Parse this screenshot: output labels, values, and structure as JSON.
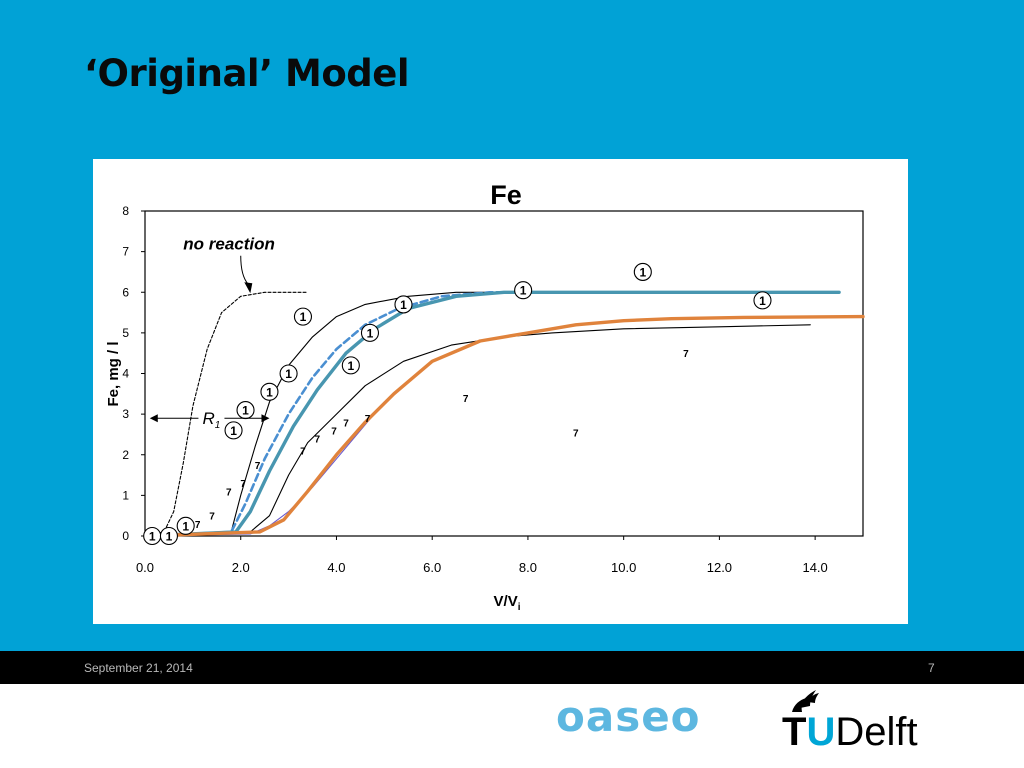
{
  "slide": {
    "title": "‘Original’ Model",
    "footer_date": "September 21, 2014",
    "page_number": "7",
    "logos": {
      "oaseo": "oaseo",
      "tudelft_t": "T",
      "tudelft_u": "U",
      "tudelft_rest": "Delft"
    }
  },
  "chart_data": {
    "type": "line",
    "title": "Fe",
    "xlabel": "V/V",
    "xlabel_subscript": "i",
    "ylabel": "Fe, mg / l",
    "xlim": [
      0,
      15
    ],
    "ylim": [
      0,
      8
    ],
    "x_ticks": [
      "0.0",
      "2.0",
      "4.0",
      "6.0",
      "8.0",
      "10.0",
      "12.0",
      "14.0"
    ],
    "x_tick_values": [
      0,
      2,
      4,
      6,
      8,
      10,
      12,
      14
    ],
    "y_ticks": [
      "0",
      "1",
      "2",
      "3",
      "4",
      "5",
      "6",
      "7",
      "8"
    ],
    "y_tick_values": [
      0,
      1,
      2,
      3,
      4,
      5,
      6,
      7,
      8
    ],
    "grid": false,
    "annotations": {
      "no_reaction": {
        "text": "no reaction",
        "x": 0.8,
        "y": 7.2,
        "arrow_to": [
          2.2,
          6.0
        ]
      },
      "r1": {
        "text": "R",
        "subscript": "1",
        "x": 1.2,
        "y": 2.9,
        "arrow_left_to": 0.1,
        "arrow_right_to": 2.6
      }
    },
    "series": [
      {
        "style": "dashed-thin",
        "color": "#000000",
        "x": [
          0,
          0.4,
          0.6,
          0.8,
          1.0,
          1.3,
          1.6,
          2.0,
          2.5,
          3.4
        ],
        "y": [
          0,
          0.1,
          0.6,
          1.8,
          3.2,
          4.6,
          5.5,
          5.9,
          6.0,
          6.0
        ]
      },
      {
        "style": "solid-thin",
        "color": "#000000",
        "x": [
          0,
          1.8,
          2.0,
          2.3,
          2.6,
          3.0,
          3.5,
          4.0,
          4.6,
          5.5,
          6.5,
          7.5
        ],
        "y": [
          0,
          0.1,
          1.0,
          2.2,
          3.3,
          4.2,
          4.9,
          5.4,
          5.7,
          5.9,
          6.0,
          6.0
        ]
      },
      {
        "style": "dashed-thick",
        "color": "#4a8fd1",
        "x": [
          0,
          1.8,
          2.1,
          2.5,
          3.0,
          3.5,
          4.0,
          4.6,
          5.3,
          6.2,
          7.2,
          8.0
        ],
        "y": [
          0,
          0.1,
          0.8,
          1.9,
          3.0,
          3.9,
          4.6,
          5.2,
          5.6,
          5.9,
          6.0,
          6.0
        ]
      },
      {
        "style": "solid-thick",
        "color": "#4896b0",
        "x": [
          0,
          1.9,
          2.2,
          2.6,
          3.1,
          3.6,
          4.2,
          4.8,
          5.5,
          6.5,
          7.5,
          9,
          11,
          14.5
        ],
        "y": [
          0,
          0.1,
          0.6,
          1.6,
          2.7,
          3.6,
          4.5,
          5.1,
          5.6,
          5.9,
          6.0,
          6.0,
          6.0,
          6.0
        ]
      },
      {
        "style": "solid-thin",
        "color": "#000000",
        "x": [
          0,
          2.2,
          2.6,
          3.0,
          3.4,
          4.0,
          4.6,
          5.4,
          6.4,
          7.5,
          8.5,
          10,
          12,
          13.9
        ],
        "y": [
          0,
          0.1,
          0.5,
          1.5,
          2.3,
          3.0,
          3.7,
          4.3,
          4.7,
          4.9,
          5.0,
          5.1,
          5.15,
          5.2
        ]
      },
      {
        "style": "solid-thin",
        "color": "#6a5acd",
        "x": [
          0,
          2.2,
          2.6,
          3.0,
          3.5,
          4.0,
          4.5,
          5.0
        ],
        "y": [
          0,
          0.05,
          0.25,
          0.6,
          1.2,
          1.9,
          2.6,
          3.3
        ]
      },
      {
        "style": "solid-thick",
        "color": "#e0833c",
        "x": [
          0,
          2.4,
          2.9,
          3.4,
          4.0,
          4.6,
          5.2,
          6.0,
          7.0,
          8.0,
          9.0,
          10.0,
          11.0,
          12.5,
          15.0
        ],
        "y": [
          0,
          0.1,
          0.4,
          1.1,
          2.0,
          2.8,
          3.5,
          4.3,
          4.8,
          5.0,
          5.2,
          5.3,
          5.35,
          5.38,
          5.4
        ]
      }
    ],
    "markers_1": {
      "label": "1",
      "points": [
        [
          0.15,
          0
        ],
        [
          0.5,
          0
        ],
        [
          0.85,
          0.25
        ],
        [
          1.85,
          2.6
        ],
        [
          2.1,
          3.1
        ],
        [
          2.6,
          3.55
        ],
        [
          3.0,
          4.0
        ],
        [
          3.3,
          5.4
        ],
        [
          4.3,
          4.2
        ],
        [
          4.7,
          5.0
        ],
        [
          5.4,
          5.7
        ],
        [
          7.9,
          6.05
        ],
        [
          10.4,
          6.5
        ],
        [
          12.9,
          5.8
        ]
      ]
    },
    "markers_7": {
      "label": "7",
      "points": [
        [
          1.1,
          0.3
        ],
        [
          1.4,
          0.5
        ],
        [
          1.75,
          1.1
        ],
        [
          2.05,
          1.3
        ],
        [
          2.35,
          1.75
        ],
        [
          3.3,
          2.1
        ],
        [
          3.6,
          2.4
        ],
        [
          3.95,
          2.6
        ],
        [
          4.2,
          2.8
        ],
        [
          4.65,
          2.9
        ],
        [
          6.7,
          3.4
        ],
        [
          9.0,
          2.55
        ],
        [
          11.3,
          4.5
        ]
      ]
    }
  }
}
